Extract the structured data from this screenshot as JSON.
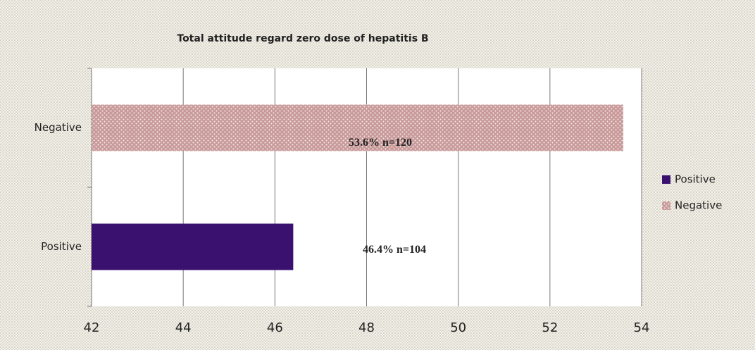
{
  "chart_data": {
    "type": "bar",
    "orientation": "horizontal",
    "title": "Total attitude regard zero dose of hepatitis B",
    "categories": [
      "Positive",
      "Negative"
    ],
    "values": [
      46.4,
      53.6
    ],
    "value_labels": [
      "46.4% n=104",
      "53.6% n=120"
    ],
    "colors": [
      "#3b1170",
      "#c99a9a"
    ],
    "xlim": [
      42,
      54
    ],
    "xticks": [
      42,
      44,
      46,
      48,
      50,
      52,
      54
    ],
    "grid": true,
    "legend": "right"
  }
}
